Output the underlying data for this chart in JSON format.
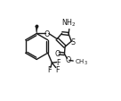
{
  "bg_color": "#ffffff",
  "line_color": "#1a1a1a",
  "lw": 1.0,
  "fs": 5.8,
  "fs_small": 5.0,
  "xlim": [
    0,
    10
  ],
  "ylim": [
    0,
    8.4
  ]
}
